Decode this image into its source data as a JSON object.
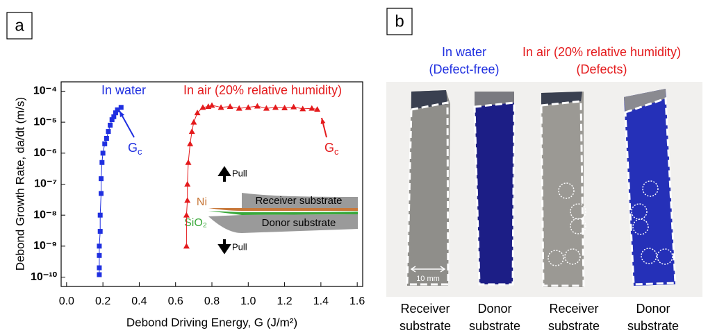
{
  "panel_a_label": "a",
  "chart_data": {
    "type": "scatter",
    "log_y": true,
    "y_label": "Debond Growth Rate, da/dt (m/s)",
    "x_label": "Debond Driving Energy, G (J/m²)",
    "xlim": [
      -0.03,
      1.63
    ],
    "ylim": [
      0.0002,
      5e-11
    ],
    "xticks": [
      {
        "value": 0,
        "label": "0.0"
      },
      0.2,
      0.4,
      0.6,
      0.8,
      {
        "value": 1,
        "label": "1.0"
      },
      1.2,
      1.4,
      1.6
    ],
    "yticks": [
      {
        "value": 1e-10,
        "label": "10⁻¹⁰"
      },
      {
        "value": 1e-09,
        "label": "10⁻⁹"
      },
      {
        "value": 1e-08,
        "label": "10⁻⁸"
      },
      {
        "value": 1e-07,
        "label": "10⁻⁷"
      },
      {
        "value": 1e-06,
        "label": "10⁻⁶"
      },
      {
        "value": 1e-05,
        "label": "10⁻⁵"
      },
      {
        "value": 0.0001,
        "label": "10⁻⁴"
      }
    ],
    "series": [
      {
        "name": "In water",
        "color": "#1f2fe0",
        "marker": "square",
        "x": [
          0.18,
          0.18,
          0.18,
          0.18,
          0.185,
          0.185,
          0.19,
          0.19,
          0.195,
          0.2,
          0.21,
          0.22,
          0.23,
          0.24,
          0.25,
          0.26,
          0.27,
          0.28,
          0.3
        ],
        "values": [
          1.2e-10,
          2e-10,
          5e-10,
          1e-09,
          3e-09,
          1e-08,
          5e-08,
          1.5e-07,
          5e-07,
          1e-06,
          2e-06,
          3e-06,
          5e-06,
          8e-06,
          1.2e-05,
          1.5e-05,
          2e-05,
          2.5e-05,
          3e-05
        ]
      },
      {
        "name": "In air (20% relative humidity)",
        "color": "#e41a1c",
        "marker": "triangle",
        "x": [
          0.66,
          0.66,
          0.665,
          0.665,
          0.67,
          0.68,
          0.69,
          0.7,
          0.72,
          0.75,
          0.78,
          0.8,
          0.85,
          0.9,
          0.95,
          1.0,
          1.05,
          1.1,
          1.15,
          1.2,
          1.25,
          1.3,
          1.35,
          1.38
        ],
        "values": [
          1e-09,
          1e-08,
          3e-08,
          1e-07,
          5e-07,
          2e-06,
          5e-06,
          1e-05,
          2e-05,
          3e-05,
          3.2e-05,
          3.5e-05,
          3e-05,
          3.2e-05,
          2.8e-05,
          3e-05,
          3.3e-05,
          2.8e-05,
          3e-05,
          2.9e-05,
          3.1e-05,
          2.7e-05,
          2.8e-05,
          2.6e-05
        ]
      }
    ],
    "annotations": [
      {
        "text": "G",
        "subscript": "c",
        "color": "#1f2fe0"
      },
      {
        "text": "G",
        "subscript": "c",
        "color": "#e41a1c"
      }
    ],
    "inset": {
      "pull_top": "Pull",
      "ni": "Ni",
      "receiver": "Receiver substrate",
      "sio2": "SiO₂",
      "donor": "Donor substrate",
      "pull_bottom": "Pull"
    }
  },
  "panel_b": {
    "label": "b",
    "water": [
      "In water",
      "(Defect-free)"
    ],
    "air": [
      "In air (20% relative humidity)",
      "(Defects)"
    ],
    "scale": "10 mm",
    "captions": [
      [
        "Receiver",
        "substrate"
      ],
      [
        "Donor",
        "substrate"
      ],
      [
        "Receiver",
        "substrate"
      ],
      [
        "Donor",
        "substrate"
      ]
    ]
  }
}
